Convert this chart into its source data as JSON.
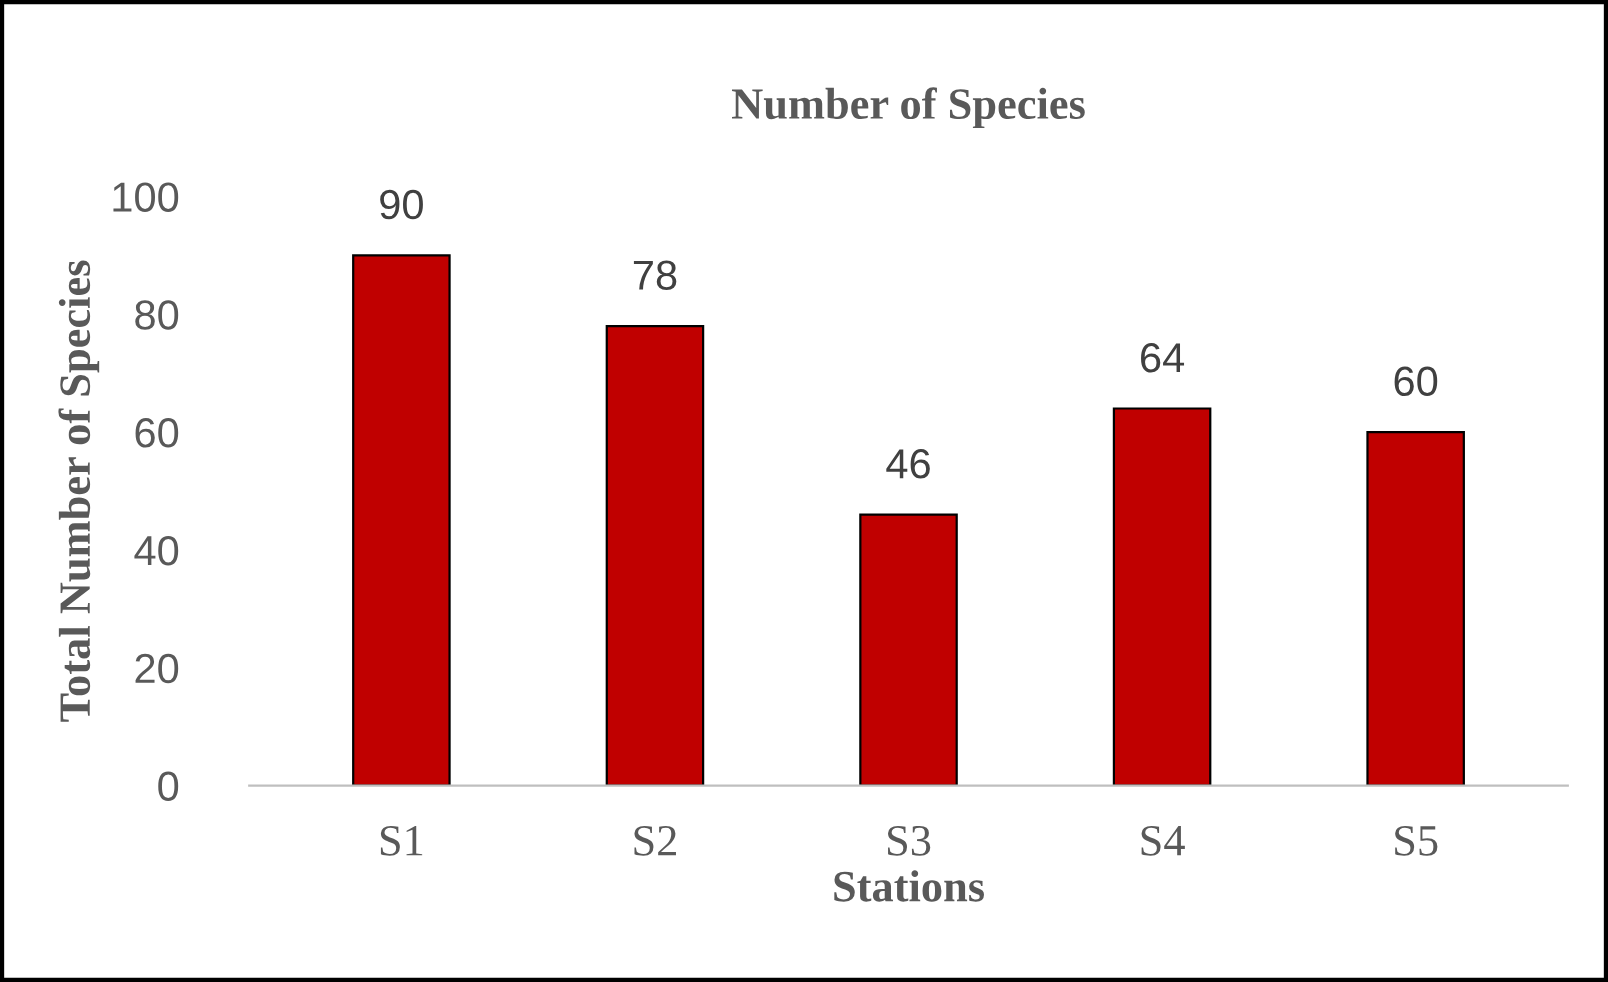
{
  "chart_data": {
    "type": "bar",
    "title": "Number of Species",
    "xlabel": "Stations",
    "ylabel": "Total Number of Species",
    "categories": [
      "S1",
      "S2",
      "S3",
      "S4",
      "S5"
    ],
    "values": [
      90,
      78,
      46,
      64,
      60
    ],
    "color": "#c00000",
    "ylim": [
      0,
      100
    ],
    "yticks": [
      0,
      20,
      40,
      60,
      80,
      100
    ],
    "data_labels": true,
    "grid": false,
    "legend": false
  }
}
